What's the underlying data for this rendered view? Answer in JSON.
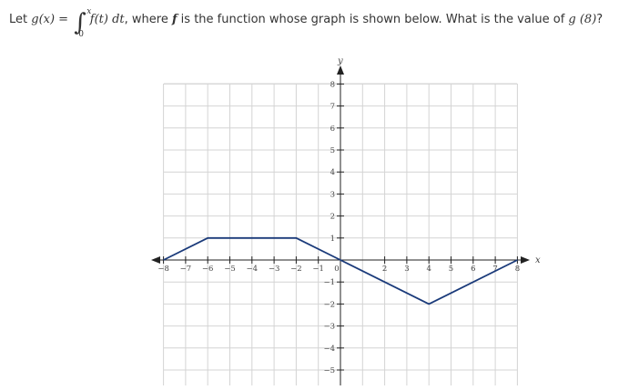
{
  "question": {
    "prefix": "Let ",
    "g_of_x": "g(x)",
    "equals": " = ",
    "integral_upper": "x",
    "integral_lower": "0",
    "integrand": "f(t) dt",
    "middle": ", where ",
    "f_symbol": "f",
    "suffix_1": " is the function whose graph is shown below. What is the value of ",
    "g_of_8": "g (8)",
    "suffix_2": "?"
  },
  "chart_data": {
    "type": "line",
    "xlabel": "x",
    "ylabel": "y",
    "xlim": [
      -8,
      8
    ],
    "ylim": [
      -5,
      8
    ],
    "grid": true,
    "x_ticks": [
      -8,
      -7,
      -6,
      -5,
      -4,
      -3,
      -2,
      -1,
      0,
      2,
      3,
      4,
      5,
      6,
      7,
      8
    ],
    "x_tick_labels": [
      "−8",
      "−7",
      "−6",
      "−5",
      "−4",
      "−3",
      "−2",
      "−1",
      "0",
      "2",
      "3",
      "4",
      "5",
      "6",
      "7",
      "8"
    ],
    "y_ticks": [
      8,
      7,
      6,
      5,
      4,
      3,
      2,
      1,
      -1,
      -2,
      -3,
      -4,
      -5
    ],
    "y_tick_labels": [
      "8",
      "7",
      "6",
      "5",
      "4",
      "3",
      "2",
      "1",
      "−1",
      "−2",
      "−3",
      "−4",
      "−5"
    ],
    "series": [
      {
        "color": "#1a3a7a",
        "x": [
          -8,
          -6,
          -2,
          0,
          4,
          8
        ],
        "y": [
          0,
          1,
          1,
          0,
          -2,
          0
        ]
      }
    ],
    "colors": {
      "grid": "#d4d4d4",
      "axis": "#222222",
      "line": "#1a3a7a"
    }
  }
}
